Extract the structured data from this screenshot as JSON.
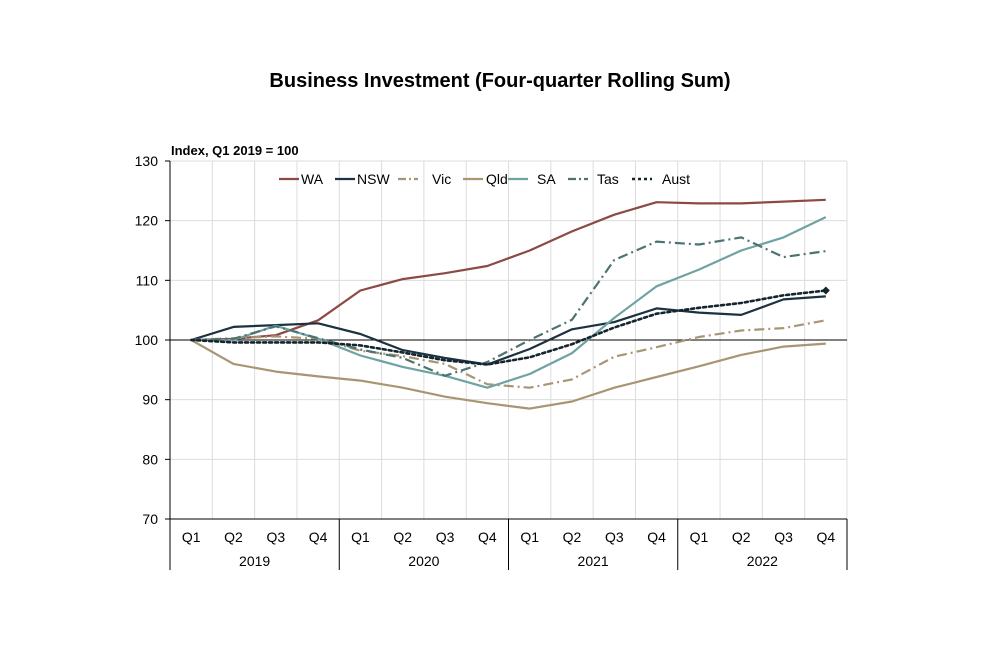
{
  "chart_data": {
    "type": "line",
    "title": "Business Investment (Four-quarter Rolling Sum)",
    "ylabel": "Index, Q1 2019 = 100",
    "xlabel": "",
    "ylim": [
      70,
      130
    ],
    "yticks": [
      70,
      80,
      90,
      100,
      110,
      120,
      130
    ],
    "grid": true,
    "legend_position": "top",
    "quarters": [
      "Q1",
      "Q2",
      "Q3",
      "Q4",
      "Q1",
      "Q2",
      "Q3",
      "Q4",
      "Q1",
      "Q2",
      "Q3",
      "Q4",
      "Q1",
      "Q2",
      "Q3",
      "Q4"
    ],
    "years": [
      "2019",
      "2020",
      "2021",
      "2022"
    ],
    "series": [
      {
        "name": "WA",
        "color": "#8b4a44",
        "dash": "solid",
        "values": [
          100,
          100.2,
          100.8,
          103.3,
          108.3,
          110.2,
          111.2,
          112.4,
          115.0,
          118.2,
          121.0,
          123.1,
          122.9,
          122.9,
          123.2,
          123.5
        ]
      },
      {
        "name": "NSW",
        "color": "#1d3240",
        "dash": "solid",
        "values": [
          100,
          102.2,
          102.5,
          102.8,
          101.0,
          98.3,
          97.0,
          95.9,
          98.5,
          101.8,
          103.0,
          105.3,
          104.6,
          104.2,
          106.8,
          107.3
        ]
      },
      {
        "name": "Vic",
        "color": "#a89574",
        "dash": "dashdot",
        "values": [
          100,
          100.3,
          100.6,
          100.2,
          98.2,
          97.3,
          96.0,
          92.6,
          92.0,
          93.4,
          97.2,
          98.8,
          100.5,
          101.6,
          102.0,
          103.3
        ]
      },
      {
        "name": "Qld",
        "color": "#a89574",
        "dash": "solid",
        "values": [
          100,
          96.0,
          94.7,
          93.9,
          93.2,
          92.0,
          90.5,
          89.4,
          88.5,
          89.7,
          92.0,
          93.8,
          95.6,
          97.5,
          98.9,
          99.4
        ]
      },
      {
        "name": "SA",
        "color": "#6fa3a3",
        "dash": "solid",
        "values": [
          100,
          100.0,
          102.4,
          100.2,
          97.4,
          95.5,
          94.0,
          92.0,
          94.3,
          97.8,
          103.7,
          109.0,
          111.8,
          115.0,
          117.2,
          120.6
        ]
      },
      {
        "name": "Tas",
        "color": "#4e7272",
        "dash": "dashdot",
        "values": [
          100,
          100.2,
          102.3,
          100.3,
          98.4,
          97.0,
          94.0,
          96.3,
          100.0,
          103.4,
          113.4,
          116.5,
          116.0,
          117.2,
          113.9,
          114.9
        ]
      },
      {
        "name": "Aust",
        "color": "#14252e",
        "dash": "dotted",
        "values": [
          100,
          99.6,
          99.6,
          99.6,
          99.1,
          97.9,
          96.6,
          95.9,
          97.1,
          99.3,
          102.1,
          104.4,
          105.4,
          106.2,
          107.5,
          108.3
        ]
      }
    ]
  }
}
